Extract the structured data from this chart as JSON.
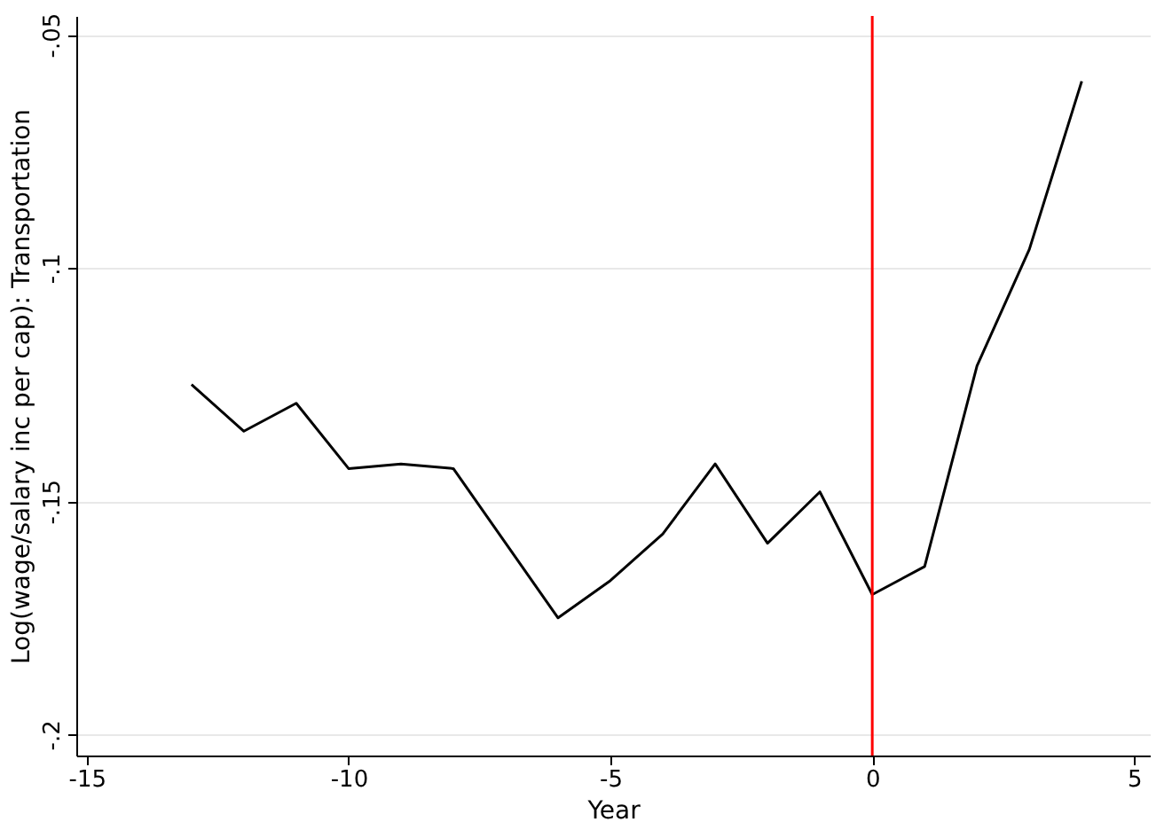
{
  "chart_data": {
    "type": "line",
    "xlabel": "Year",
    "ylabel": "Log(wage/salary inc per cap): Transportation",
    "x": [
      -13,
      -12,
      -11,
      -10,
      -9,
      -8,
      -7,
      -6,
      -5,
      -4,
      -3,
      -2,
      -1,
      0,
      1,
      2,
      3,
      4
    ],
    "series": [
      {
        "color": "#000000",
        "values": [
          -0.125,
          -0.135,
          -0.129,
          -0.143,
          -0.142,
          -0.143,
          -0.159,
          -0.175,
          -0.167,
          -0.157,
          -0.142,
          -0.159,
          -0.148,
          -0.17,
          -0.164,
          -0.121,
          -0.096,
          -0.06
        ]
      }
    ],
    "xlim": [
      -15.2,
      5.3
    ],
    "xticks": [
      -15,
      -10,
      -5,
      0,
      5
    ],
    "ylim": [
      -0.2045,
      -0.046
    ],
    "yticks": [
      {
        "value": -0.2,
        "label": "-.2"
      },
      {
        "value": -0.15,
        "label": "-.15"
      },
      {
        "value": -0.1,
        "label": "-.1"
      },
      {
        "value": -0.05,
        "label": "-.05"
      }
    ],
    "ref_lines": [
      {
        "axis": "x",
        "value": 0,
        "color": "#ff0000"
      }
    ],
    "grid": "y",
    "marker": "none",
    "line_style": "solid"
  }
}
